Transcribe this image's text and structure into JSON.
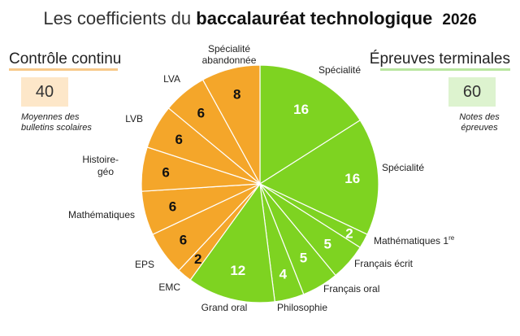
{
  "title": {
    "prefix": "Les coefficients du",
    "bold": "baccalauréat technologique",
    "year": "2026"
  },
  "left_panel": {
    "heading": "Contrôle continu",
    "value": "40",
    "note": "Moyennes des bulletins scolaires",
    "color": "#f4a62a"
  },
  "right_panel": {
    "heading": "Épreuves terminales",
    "value": "60",
    "note": "Notes des épreuves",
    "color": "#7ed321"
  },
  "chart_data": {
    "type": "pie",
    "title": "Les coefficients du baccalauréat technologique 2026",
    "start": "top",
    "direction": "clockwise",
    "slices": [
      {
        "label": "Spécialité",
        "value": 16,
        "group": "Épreuves terminales",
        "color": "#7ed321"
      },
      {
        "label": "Spécialité",
        "value": 16,
        "group": "Épreuves terminales",
        "color": "#7ed321"
      },
      {
        "label": "Mathématiques 1re",
        "value": 2,
        "group": "Épreuves terminales",
        "color": "#7ed321"
      },
      {
        "label": "Français écrit",
        "value": 5,
        "group": "Épreuves terminales",
        "color": "#7ed321"
      },
      {
        "label": "Français oral",
        "value": 5,
        "group": "Épreuves terminales",
        "color": "#7ed321"
      },
      {
        "label": "Philosophie",
        "value": 4,
        "group": "Épreuves terminales",
        "color": "#7ed321"
      },
      {
        "label": "Grand oral",
        "value": 12,
        "group": "Épreuves terminales",
        "color": "#7ed321"
      },
      {
        "label": "EMC",
        "value": 2,
        "group": "Contrôle continu",
        "color": "#f4a62a"
      },
      {
        "label": "EPS",
        "value": 6,
        "group": "Contrôle continu",
        "color": "#f4a62a"
      },
      {
        "label": "Mathématiques",
        "value": 6,
        "group": "Contrôle continu",
        "color": "#f4a62a"
      },
      {
        "label": "Histoire-géo",
        "value": 6,
        "group": "Contrôle continu",
        "color": "#f4a62a"
      },
      {
        "label": "LVB",
        "value": 6,
        "group": "Contrôle continu",
        "color": "#f4a62a"
      },
      {
        "label": "LVA",
        "value": 6,
        "group": "Contrôle continu",
        "color": "#f4a62a"
      },
      {
        "label": "Spécialité abandonnée",
        "value": 8,
        "group": "Contrôle continu",
        "color": "#f4a62a"
      }
    ]
  }
}
